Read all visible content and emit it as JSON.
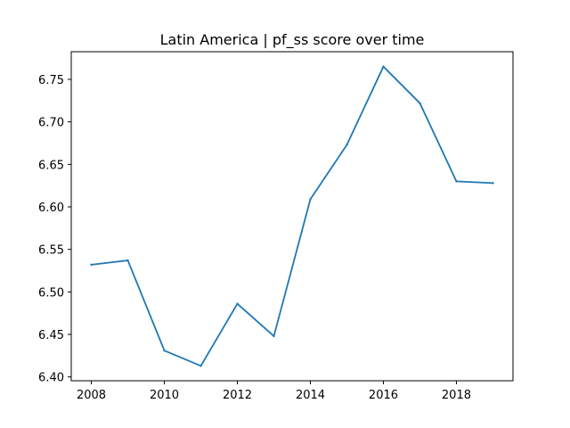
{
  "chart_data": {
    "type": "line",
    "title": "Latin America | pf_ss score over time",
    "xlabel": "",
    "ylabel": "",
    "x": [
      2008,
      2009,
      2010,
      2011,
      2012,
      2013,
      2014,
      2015,
      2016,
      2017,
      2018,
      2019
    ],
    "series": [
      {
        "values": [
          6.532,
          6.537,
          6.431,
          6.413,
          6.486,
          6.448,
          6.609,
          6.673,
          6.765,
          6.722,
          6.63,
          6.628
        ],
        "color": "#1f77b4"
      }
    ],
    "xlim": [
      2007.45,
      2019.55
    ],
    "ylim": [
      6.3955,
      6.7825
    ],
    "x_ticks": [
      "2008",
      "2010",
      "2012",
      "2014",
      "2016",
      "2018"
    ],
    "y_ticks": [
      "6.40",
      "6.45",
      "6.50",
      "6.55",
      "6.60",
      "6.65",
      "6.70",
      "6.75"
    ],
    "grid": false,
    "legend": "none"
  }
}
